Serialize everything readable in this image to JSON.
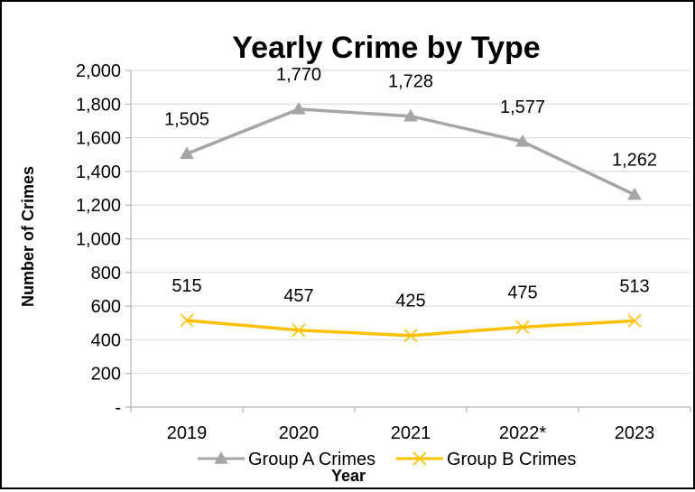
{
  "chart_data": {
    "type": "line",
    "title": "Yearly Crime by Type",
    "xlabel": "Year",
    "ylabel": "Number of Crimes",
    "categories": [
      "2019",
      "2020",
      "2021",
      "2022*",
      "2023"
    ],
    "ylim": [
      0,
      2000
    ],
    "yticks": [
      0,
      200,
      400,
      600,
      800,
      1000,
      1200,
      1400,
      1600,
      1800,
      2000
    ],
    "ytick_labels": [
      "-",
      "200",
      "400",
      "600",
      "800",
      "1,000",
      "1,200",
      "1,400",
      "1,600",
      "1,800",
      "2,000"
    ],
    "grid": true,
    "legend": "bottom",
    "series": [
      {
        "name": "Group A Crimes",
        "values": [
          1505,
          1770,
          1728,
          1577,
          1262
        ],
        "labels": [
          "1,505",
          "1,770",
          "1,728",
          "1,577",
          "1,262"
        ],
        "color": "#a6a6a6",
        "marker": "triangle"
      },
      {
        "name": "Group B Crimes",
        "values": [
          515,
          457,
          425,
          475,
          513
        ],
        "labels": [
          "515",
          "457",
          "425",
          "475",
          "513"
        ],
        "color": "#ffc000",
        "marker": "x"
      }
    ]
  }
}
